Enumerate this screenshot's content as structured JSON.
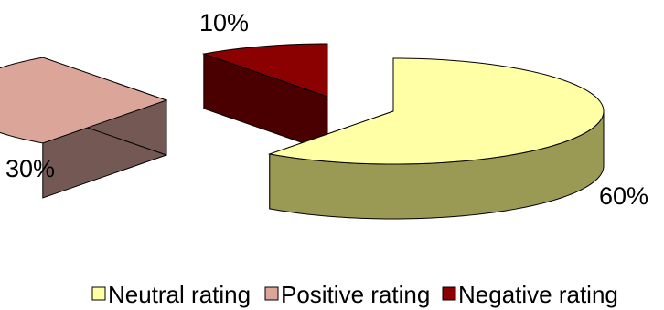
{
  "chart_data": {
    "type": "pie",
    "style": "3d-exploded",
    "title": "",
    "legend_position": "bottom",
    "slices": [
      {
        "name": "Neutral rating",
        "value": 60,
        "label": "60%",
        "color": "#ffffa6",
        "side_color": "#9a9a55"
      },
      {
        "name": "Positive rating",
        "value": 30,
        "label": "30%",
        "color": "#dba59a",
        "side_color": "#745853"
      },
      {
        "name": "Negative rating",
        "value": 10,
        "label": "10%",
        "color": "#8b0000",
        "side_color": "#4a0000"
      }
    ]
  }
}
